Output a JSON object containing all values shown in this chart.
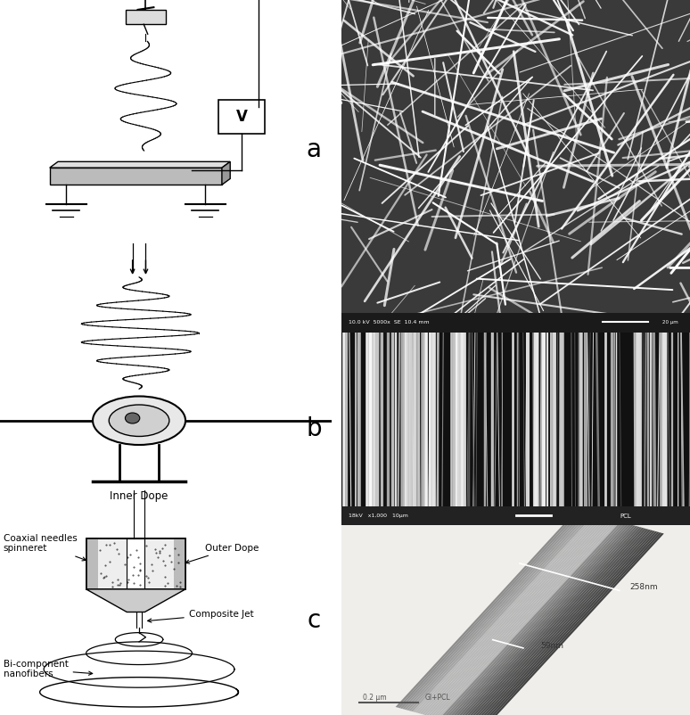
{
  "bg_color": "#ffffff",
  "label_a": "a",
  "label_b": "b",
  "label_c": "c",
  "label_fontsize": 20,
  "inner_dope_text": "Inner Dope",
  "outer_dope_text": "Outer Dope",
  "composite_jet_text": "Composite Jet",
  "coaxial_text": "Coaxial needles\nspinneret",
  "bicomponent_text": "Bi-component\nnanofibers",
  "voltage_text": "V",
  "current_text": "I",
  "scale_258nm": "258nm",
  "scale_59nm": "59nm",
  "sem_a_bg": "#222222",
  "sem_b_bg": "#1a1a1a",
  "tem_c_bg": "#e8e6e0",
  "fiber_color_a": "#ffffff",
  "fiber_color_b_bright": "#ffffff",
  "fiber_color_b_dim": "#555555"
}
